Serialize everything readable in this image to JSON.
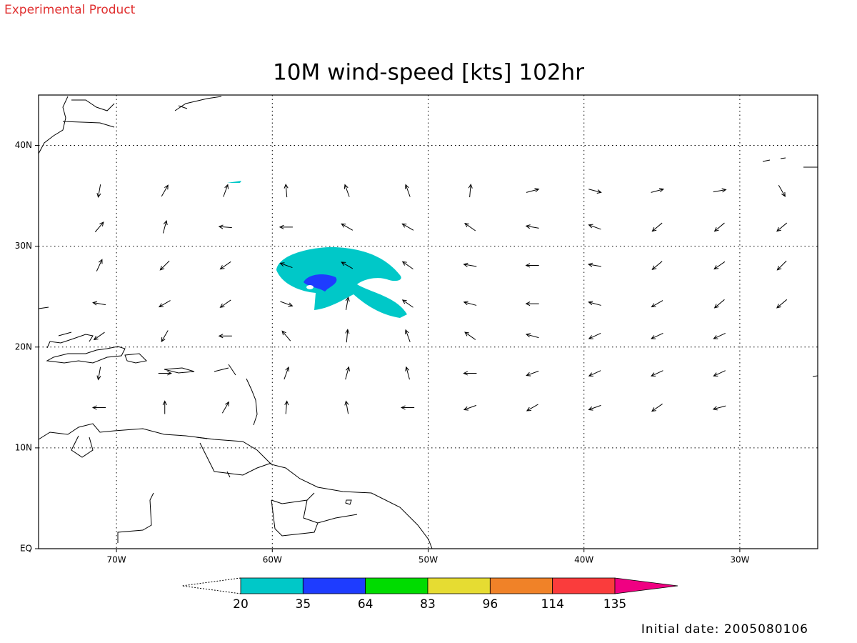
{
  "note": "Experimental Product",
  "chart_data": {
    "type": "map",
    "title": "10M wind-speed [kts] 102hr",
    "xlim": [
      -75,
      -25
    ],
    "ylim": [
      0,
      45
    ],
    "xticks": [
      {
        "value": -70,
        "label": "70W"
      },
      {
        "value": -60,
        "label": "60W"
      },
      {
        "value": -50,
        "label": "50W"
      },
      {
        "value": -40,
        "label": "40W"
      },
      {
        "value": -30,
        "label": "30W"
      }
    ],
    "yticks": [
      {
        "value": 0,
        "label": "EQ"
      },
      {
        "value": 10,
        "label": "10N"
      },
      {
        "value": 20,
        "label": "20N"
      },
      {
        "value": 30,
        "label": "30N"
      },
      {
        "value": 40,
        "label": "40N"
      }
    ],
    "grid": true,
    "colorbar": {
      "levels": [
        20,
        35,
        64,
        83,
        96,
        114,
        135
      ],
      "colors": [
        "#00c8c8",
        "#1e3cff",
        "#00dc00",
        "#e6dc32",
        "#f08228",
        "#fa3c3c",
        "#f00082"
      ]
    },
    "wind_vectors": {
      "lon": [
        -71.1,
        -66.9,
        -63.0,
        -59.1,
        -55.2,
        -51.3,
        -47.3,
        -43.3,
        -39.3,
        -35.3,
        -31.3,
        -27.3
      ],
      "lat": [
        35.5,
        31.9,
        28.1,
        24.3,
        21.1,
        17.4,
        14.0
      ],
      "direction_deg": [
        [
          -100,
          60,
          70,
          95,
          110,
          110,
          85,
          15,
          -15,
          15,
          10,
          -60
        ],
        [
          50,
          75,
          175,
          180,
          150,
          150,
          145,
          170,
          160,
          220,
          220,
          220
        ],
        [
          65,
          225,
          215,
          160,
          150,
          145,
          170,
          180,
          170,
          220,
          215,
          225
        ],
        [
          170,
          210,
          215,
          -20,
          80,
          145,
          165,
          180,
          165,
          210,
          220,
          220
        ],
        [
          215,
          240,
          180,
          130,
          85,
          110,
          145,
          165,
          205,
          205,
          205,
          null
        ],
        [
          -100,
          0,
          null,
          70,
          75,
          105,
          180,
          200,
          205,
          205,
          205,
          null
        ],
        [
          180,
          90,
          60,
          85,
          100,
          180,
          200,
          210,
          200,
          215,
          195,
          null
        ]
      ]
    }
  },
  "footer": "Initial date: 2005080106"
}
